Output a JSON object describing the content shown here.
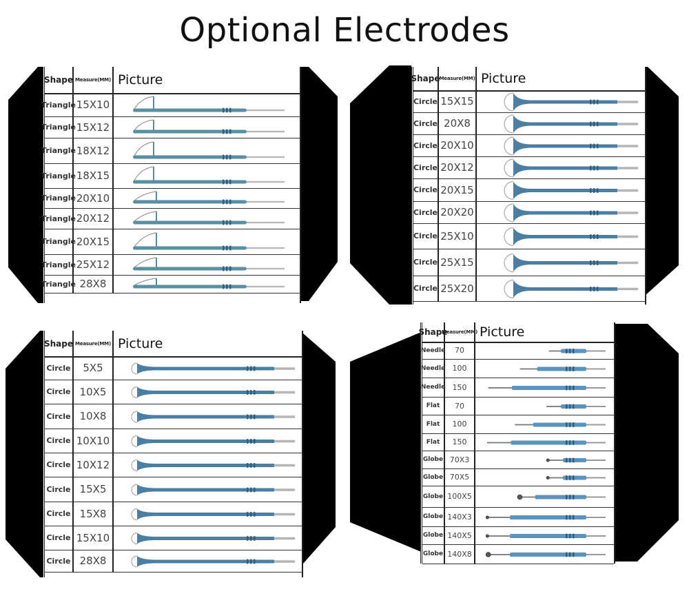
{
  "title": "Optional Electrodes",
  "colors": {
    "electrode_body": "#4a7fa3",
    "electrode_tip": "#b8b8b8",
    "wing": "#000000"
  },
  "headers": {
    "shape": "Shape",
    "measure": "Measure(MM)",
    "picture": "Picture"
  },
  "panels": [
    {
      "id": "triangle",
      "rows": [
        {
          "shape": "Triangle",
          "measure": "15X10",
          "icon": "triangle-loop-electrode-icon"
        },
        {
          "shape": "Triangle",
          "measure": "15X12",
          "icon": "triangle-loop-electrode-icon"
        },
        {
          "shape": "Triangle",
          "measure": "18X12",
          "icon": "triangle-loop-electrode-icon"
        },
        {
          "shape": "Triangle",
          "measure": "18X15",
          "icon": "triangle-loop-electrode-icon"
        },
        {
          "shape": "Triangle",
          "measure": "20X10",
          "icon": "triangle-loop-electrode-icon"
        },
        {
          "shape": "Triangle",
          "measure": "20X12",
          "icon": "triangle-loop-electrode-icon"
        },
        {
          "shape": "Triangle",
          "measure": "20X15",
          "icon": "triangle-loop-electrode-icon"
        },
        {
          "shape": "Triangle",
          "measure": "25X12",
          "icon": "triangle-loop-electrode-icon"
        },
        {
          "shape": "Triangle",
          "measure": "28X8",
          "icon": "triangle-loop-electrode-icon"
        }
      ]
    },
    {
      "id": "circle-large",
      "rows": [
        {
          "shape": "Circle",
          "measure": "15X15",
          "icon": "circle-loop-electrode-icon"
        },
        {
          "shape": "Circle",
          "measure": "20X8",
          "icon": "circle-loop-electrode-icon"
        },
        {
          "shape": "Circle",
          "measure": "20X10",
          "icon": "circle-loop-electrode-icon"
        },
        {
          "shape": "Circle",
          "measure": "20X12",
          "icon": "circle-loop-electrode-icon"
        },
        {
          "shape": "Circle",
          "measure": "20X15",
          "icon": "circle-loop-electrode-icon"
        },
        {
          "shape": "Circle",
          "measure": "20X20",
          "icon": "circle-loop-electrode-icon"
        },
        {
          "shape": "Circle",
          "measure": "25X10",
          "icon": "circle-loop-electrode-icon"
        },
        {
          "shape": "Circle",
          "measure": "25X15",
          "icon": "circle-loop-electrode-icon"
        },
        {
          "shape": "Circle",
          "measure": "25X20",
          "icon": "circle-loop-electrode-icon"
        }
      ]
    },
    {
      "id": "circle-small",
      "rows": [
        {
          "shape": "Circle",
          "measure": "5X5",
          "icon": "circle-loop-electrode-icon"
        },
        {
          "shape": "Circle",
          "measure": "10X5",
          "icon": "circle-loop-electrode-icon"
        },
        {
          "shape": "Circle",
          "measure": "10X8",
          "icon": "circle-loop-electrode-icon"
        },
        {
          "shape": "Circle",
          "measure": "10X10",
          "icon": "circle-loop-electrode-icon"
        },
        {
          "shape": "Circle",
          "measure": "10X12",
          "icon": "circle-loop-electrode-icon"
        },
        {
          "shape": "Circle",
          "measure": "15X5",
          "icon": "circle-loop-electrode-icon"
        },
        {
          "shape": "Circle",
          "measure": "15X8",
          "icon": "circle-loop-electrode-icon"
        },
        {
          "shape": "Circle",
          "measure": "15X10",
          "icon": "circle-loop-electrode-icon"
        },
        {
          "shape": "Circle",
          "measure": "28X8",
          "icon": "circle-loop-electrode-icon"
        }
      ]
    },
    {
      "id": "needle-flat-globe",
      "rows": [
        {
          "shape": "Needle",
          "measure": "70",
          "icon": "needle-electrode-icon"
        },
        {
          "shape": "Needle",
          "measure": "100",
          "icon": "needle-electrode-icon"
        },
        {
          "shape": "Needle",
          "measure": "150",
          "icon": "needle-electrode-icon"
        },
        {
          "shape": "Flat",
          "measure": "70",
          "icon": "flat-blade-electrode-icon"
        },
        {
          "shape": "Flat",
          "measure": "100",
          "icon": "flat-blade-electrode-icon"
        },
        {
          "shape": "Flat",
          "measure": "150",
          "icon": "flat-blade-electrode-icon"
        },
        {
          "shape": "Globe",
          "measure": "70X3",
          "icon": "globe-ball-electrode-icon"
        },
        {
          "shape": "Globe",
          "measure": "70X5",
          "icon": "globe-ball-electrode-icon"
        },
        {
          "shape": "Globe",
          "measure": "100X5",
          "icon": "globe-ball-electrode-icon"
        },
        {
          "shape": "Globe",
          "measure": "140X3",
          "icon": "globe-ball-electrode-icon"
        },
        {
          "shape": "Globe",
          "measure": "140X5",
          "icon": "globe-ball-electrode-icon"
        },
        {
          "shape": "Globe",
          "measure": "140X8",
          "icon": "globe-ball-electrode-icon"
        }
      ]
    }
  ]
}
